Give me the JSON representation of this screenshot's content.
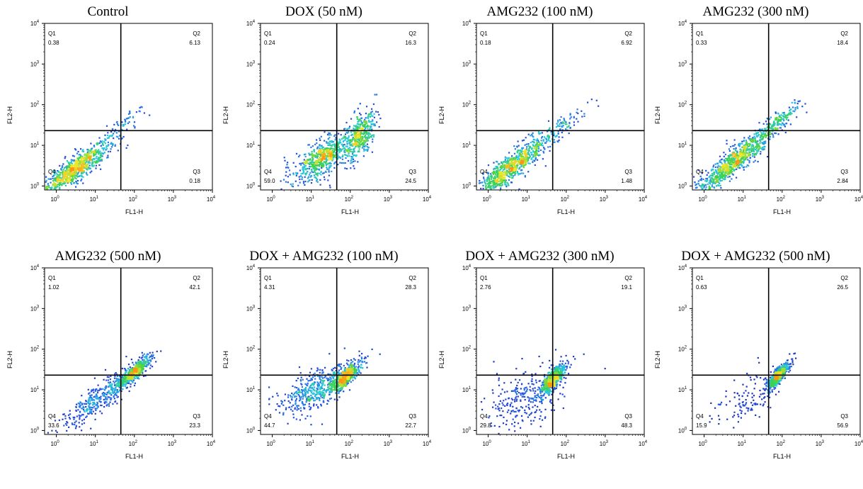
{
  "chart_data": [
    {
      "type": "scatter",
      "title": "Control",
      "xlabel": "FL1-H",
      "ylabel": "FL2-H",
      "xscale": "log",
      "yscale": "log",
      "xlim": [
        0.5,
        10000
      ],
      "ylim": [
        0.8,
        10000
      ],
      "x_gate": 45,
      "y_gate": 23,
      "quadrants": [
        {
          "label": "Q1",
          "value": "0.38"
        },
        {
          "label": "Q2",
          "value": "6.13"
        },
        {
          "label": "Q3",
          "value": "0.18"
        },
        {
          "label": "Q4",
          "value": ""
        }
      ],
      "populations": [
        {
          "cx": 3,
          "cy": 2.6,
          "sx": 0.45,
          "sy": 0.33,
          "rho": 0.88,
          "n": 800
        },
        {
          "cx": 40,
          "cy": 25,
          "sx": 0.35,
          "sy": 0.3,
          "rho": 0.9,
          "n": 80
        }
      ]
    },
    {
      "type": "scatter",
      "title": "DOX (50 nM)",
      "xlabel": "FL1-H",
      "ylabel": "FL2-H",
      "xscale": "log",
      "yscale": "log",
      "xlim": [
        0.5,
        10000
      ],
      "ylim": [
        0.8,
        10000
      ],
      "x_gate": 45,
      "y_gate": 23,
      "quadrants": [
        {
          "label": "Q1",
          "value": "0.24"
        },
        {
          "label": "Q2",
          "value": "16.3"
        },
        {
          "label": "Q3",
          "value": "24.5"
        },
        {
          "label": "Q4",
          "value": "59.0"
        }
      ],
      "populations": [
        {
          "cx": 22,
          "cy": 5.5,
          "sx": 0.32,
          "sy": 0.25,
          "rho": 0.6,
          "n": 550
        },
        {
          "cx": 170,
          "cy": 18,
          "sx": 0.2,
          "sy": 0.3,
          "rho": 0.5,
          "n": 420
        },
        {
          "cx": 6,
          "cy": 2,
          "sx": 0.4,
          "sy": 0.3,
          "rho": 0.3,
          "n": 80
        }
      ]
    },
    {
      "type": "scatter",
      "title": "AMG232 (100 nM)",
      "xlabel": "FL1-H",
      "ylabel": "FL2-H",
      "xscale": "log",
      "yscale": "log",
      "xlim": [
        0.5,
        10000
      ],
      "ylim": [
        0.8,
        10000
      ],
      "x_gate": 45,
      "y_gate": 23,
      "quadrants": [
        {
          "label": "Q1",
          "value": "0.18"
        },
        {
          "label": "Q2",
          "value": "6.92"
        },
        {
          "label": "Q3",
          "value": "1.48"
        },
        {
          "label": "Q4",
          "value": ""
        }
      ],
      "populations": [
        {
          "cx": 4,
          "cy": 3,
          "sx": 0.5,
          "sy": 0.4,
          "rho": 0.9,
          "n": 850
        },
        {
          "cx": 70,
          "cy": 25,
          "sx": 0.35,
          "sy": 0.3,
          "rho": 0.9,
          "n": 80
        }
      ]
    },
    {
      "type": "scatter",
      "title": "AMG232 (300 nM)",
      "xlabel": "FL1-H",
      "ylabel": "FL2-H",
      "xscale": "log",
      "yscale": "log",
      "xlim": [
        0.5,
        10000
      ],
      "ylim": [
        0.8,
        10000
      ],
      "x_gate": 45,
      "y_gate": 23,
      "quadrants": [
        {
          "label": "Q1",
          "value": "0.33"
        },
        {
          "label": "Q2",
          "value": "18.4"
        },
        {
          "label": "Q3",
          "value": "2.84"
        },
        {
          "label": "Q4",
          "value": ""
        }
      ],
      "populations": [
        {
          "cx": 6,
          "cy": 4,
          "sx": 0.55,
          "sy": 0.45,
          "rho": 0.92,
          "n": 850
        },
        {
          "cx": 70,
          "cy": 35,
          "sx": 0.3,
          "sy": 0.25,
          "rho": 0.9,
          "n": 160
        }
      ]
    },
    {
      "type": "scatter",
      "title": "AMG232 (500 nM)",
      "xlabel": "FL1-H",
      "ylabel": "FL2-H",
      "xscale": "log",
      "yscale": "log",
      "xlim": [
        0.5,
        10000
      ],
      "ylim": [
        0.8,
        10000
      ],
      "x_gate": 45,
      "y_gate": 23,
      "quadrants": [
        {
          "label": "Q1",
          "value": "1.02"
        },
        {
          "label": "Q2",
          "value": "42.1"
        },
        {
          "label": "Q3",
          "value": "23.3"
        },
        {
          "label": "Q4",
          "value": "33.6"
        }
      ],
      "populations": [
        {
          "cx": 100,
          "cy": 28,
          "sx": 0.22,
          "sy": 0.2,
          "rho": 0.85,
          "n": 500
        },
        {
          "cx": 12,
          "cy": 6,
          "sx": 0.45,
          "sy": 0.35,
          "rho": 0.85,
          "n": 380
        }
      ]
    },
    {
      "type": "scatter",
      "title": "DOX + AMG232 (100 nM)",
      "xlabel": "FL1-H",
      "ylabel": "FL2-H",
      "xscale": "log",
      "yscale": "log",
      "xlim": [
        0.5,
        10000
      ],
      "ylim": [
        0.8,
        10000
      ],
      "x_gate": 45,
      "y_gate": 23,
      "quadrants": [
        {
          "label": "Q1",
          "value": "4.31"
        },
        {
          "label": "Q2",
          "value": "28.3"
        },
        {
          "label": "Q3",
          "value": "22.7"
        },
        {
          "label": "Q4",
          "value": "44.7"
        }
      ],
      "populations": [
        {
          "cx": 80,
          "cy": 22,
          "sx": 0.22,
          "sy": 0.2,
          "rho": 0.8,
          "n": 450
        },
        {
          "cx": 12,
          "cy": 10,
          "sx": 0.45,
          "sy": 0.3,
          "rho": 0.6,
          "n": 450
        }
      ]
    },
    {
      "type": "scatter",
      "title": "DOX + AMG232 (300 nM)",
      "xlabel": "FL1-H",
      "ylabel": "FL2-H",
      "xscale": "log",
      "yscale": "log",
      "xlim": [
        0.5,
        10000
      ],
      "ylim": [
        0.8,
        10000
      ],
      "x_gate": 45,
      "y_gate": 23,
      "quadrants": [
        {
          "label": "Q1",
          "value": "2.76"
        },
        {
          "label": "Q2",
          "value": "19.1"
        },
        {
          "label": "Q3",
          "value": "48.3"
        },
        {
          "label": "Q4",
          "value": "29.8"
        }
      ],
      "populations": [
        {
          "cx": 45,
          "cy": 18,
          "sx": 0.17,
          "sy": 0.2,
          "rho": 0.75,
          "n": 550
        },
        {
          "cx": 8,
          "cy": 6,
          "sx": 0.5,
          "sy": 0.4,
          "rho": 0.4,
          "n": 260
        }
      ]
    },
    {
      "type": "scatter",
      "title": "DOX + AMG232 (500 nM)",
      "xlabel": "FL1-H",
      "ylabel": "FL2-H",
      "xscale": "log",
      "yscale": "log",
      "xlim": [
        0.5,
        10000
      ],
      "ylim": [
        0.8,
        10000
      ],
      "x_gate": 45,
      "y_gate": 23,
      "quadrants": [
        {
          "label": "Q1",
          "value": "0.63"
        },
        {
          "label": "Q2",
          "value": "26.5"
        },
        {
          "label": "Q3",
          "value": "56.9"
        },
        {
          "label": "Q4",
          "value": "15.9"
        }
      ],
      "populations": [
        {
          "cx": 80,
          "cy": 22,
          "sx": 0.15,
          "sy": 0.17,
          "rho": 0.85,
          "n": 550
        },
        {
          "cx": 12,
          "cy": 6,
          "sx": 0.45,
          "sy": 0.35,
          "rho": 0.5,
          "n": 120
        }
      ]
    }
  ]
}
